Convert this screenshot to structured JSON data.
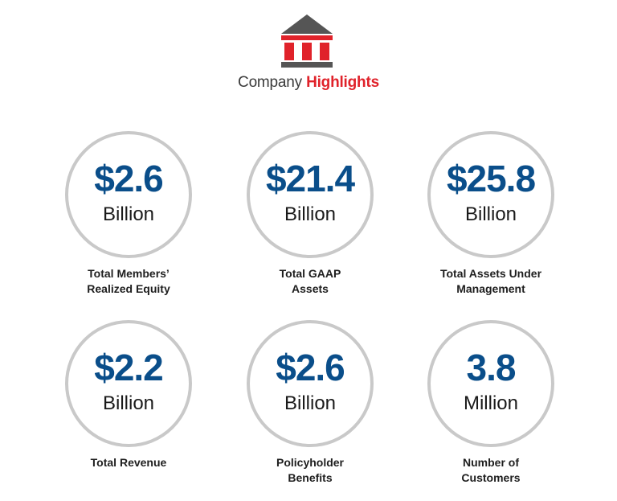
{
  "header": {
    "title_light": "Company",
    "title_bold": "Highlights",
    "logo_icon": "bank-building-icon",
    "brand_red": "#e0222a",
    "brand_dark": "#555555"
  },
  "colors": {
    "value_blue": "#0a4e8a",
    "circle_border": "#c9c9c9"
  },
  "stats": [
    {
      "value": "$2.6",
      "unit": "Billion",
      "label_line1": "Total Members’",
      "label_line2": "Realized Equity"
    },
    {
      "value": "$21.4",
      "unit": "Billion",
      "label_line1": "Total GAAP",
      "label_line2": "Assets"
    },
    {
      "value": "$25.8",
      "unit": "Billion",
      "label_line1": "Total Assets Under",
      "label_line2": "Management"
    },
    {
      "value": "$2.2",
      "unit": "Billion",
      "label_line1": "Total Revenue",
      "label_line2": ""
    },
    {
      "value": "$2.6",
      "unit": "Billion",
      "label_line1": "Policyholder",
      "label_line2": "Benefits"
    },
    {
      "value": "3.8",
      "unit": "Million",
      "label_line1": "Number of",
      "label_line2": "Customers"
    }
  ]
}
